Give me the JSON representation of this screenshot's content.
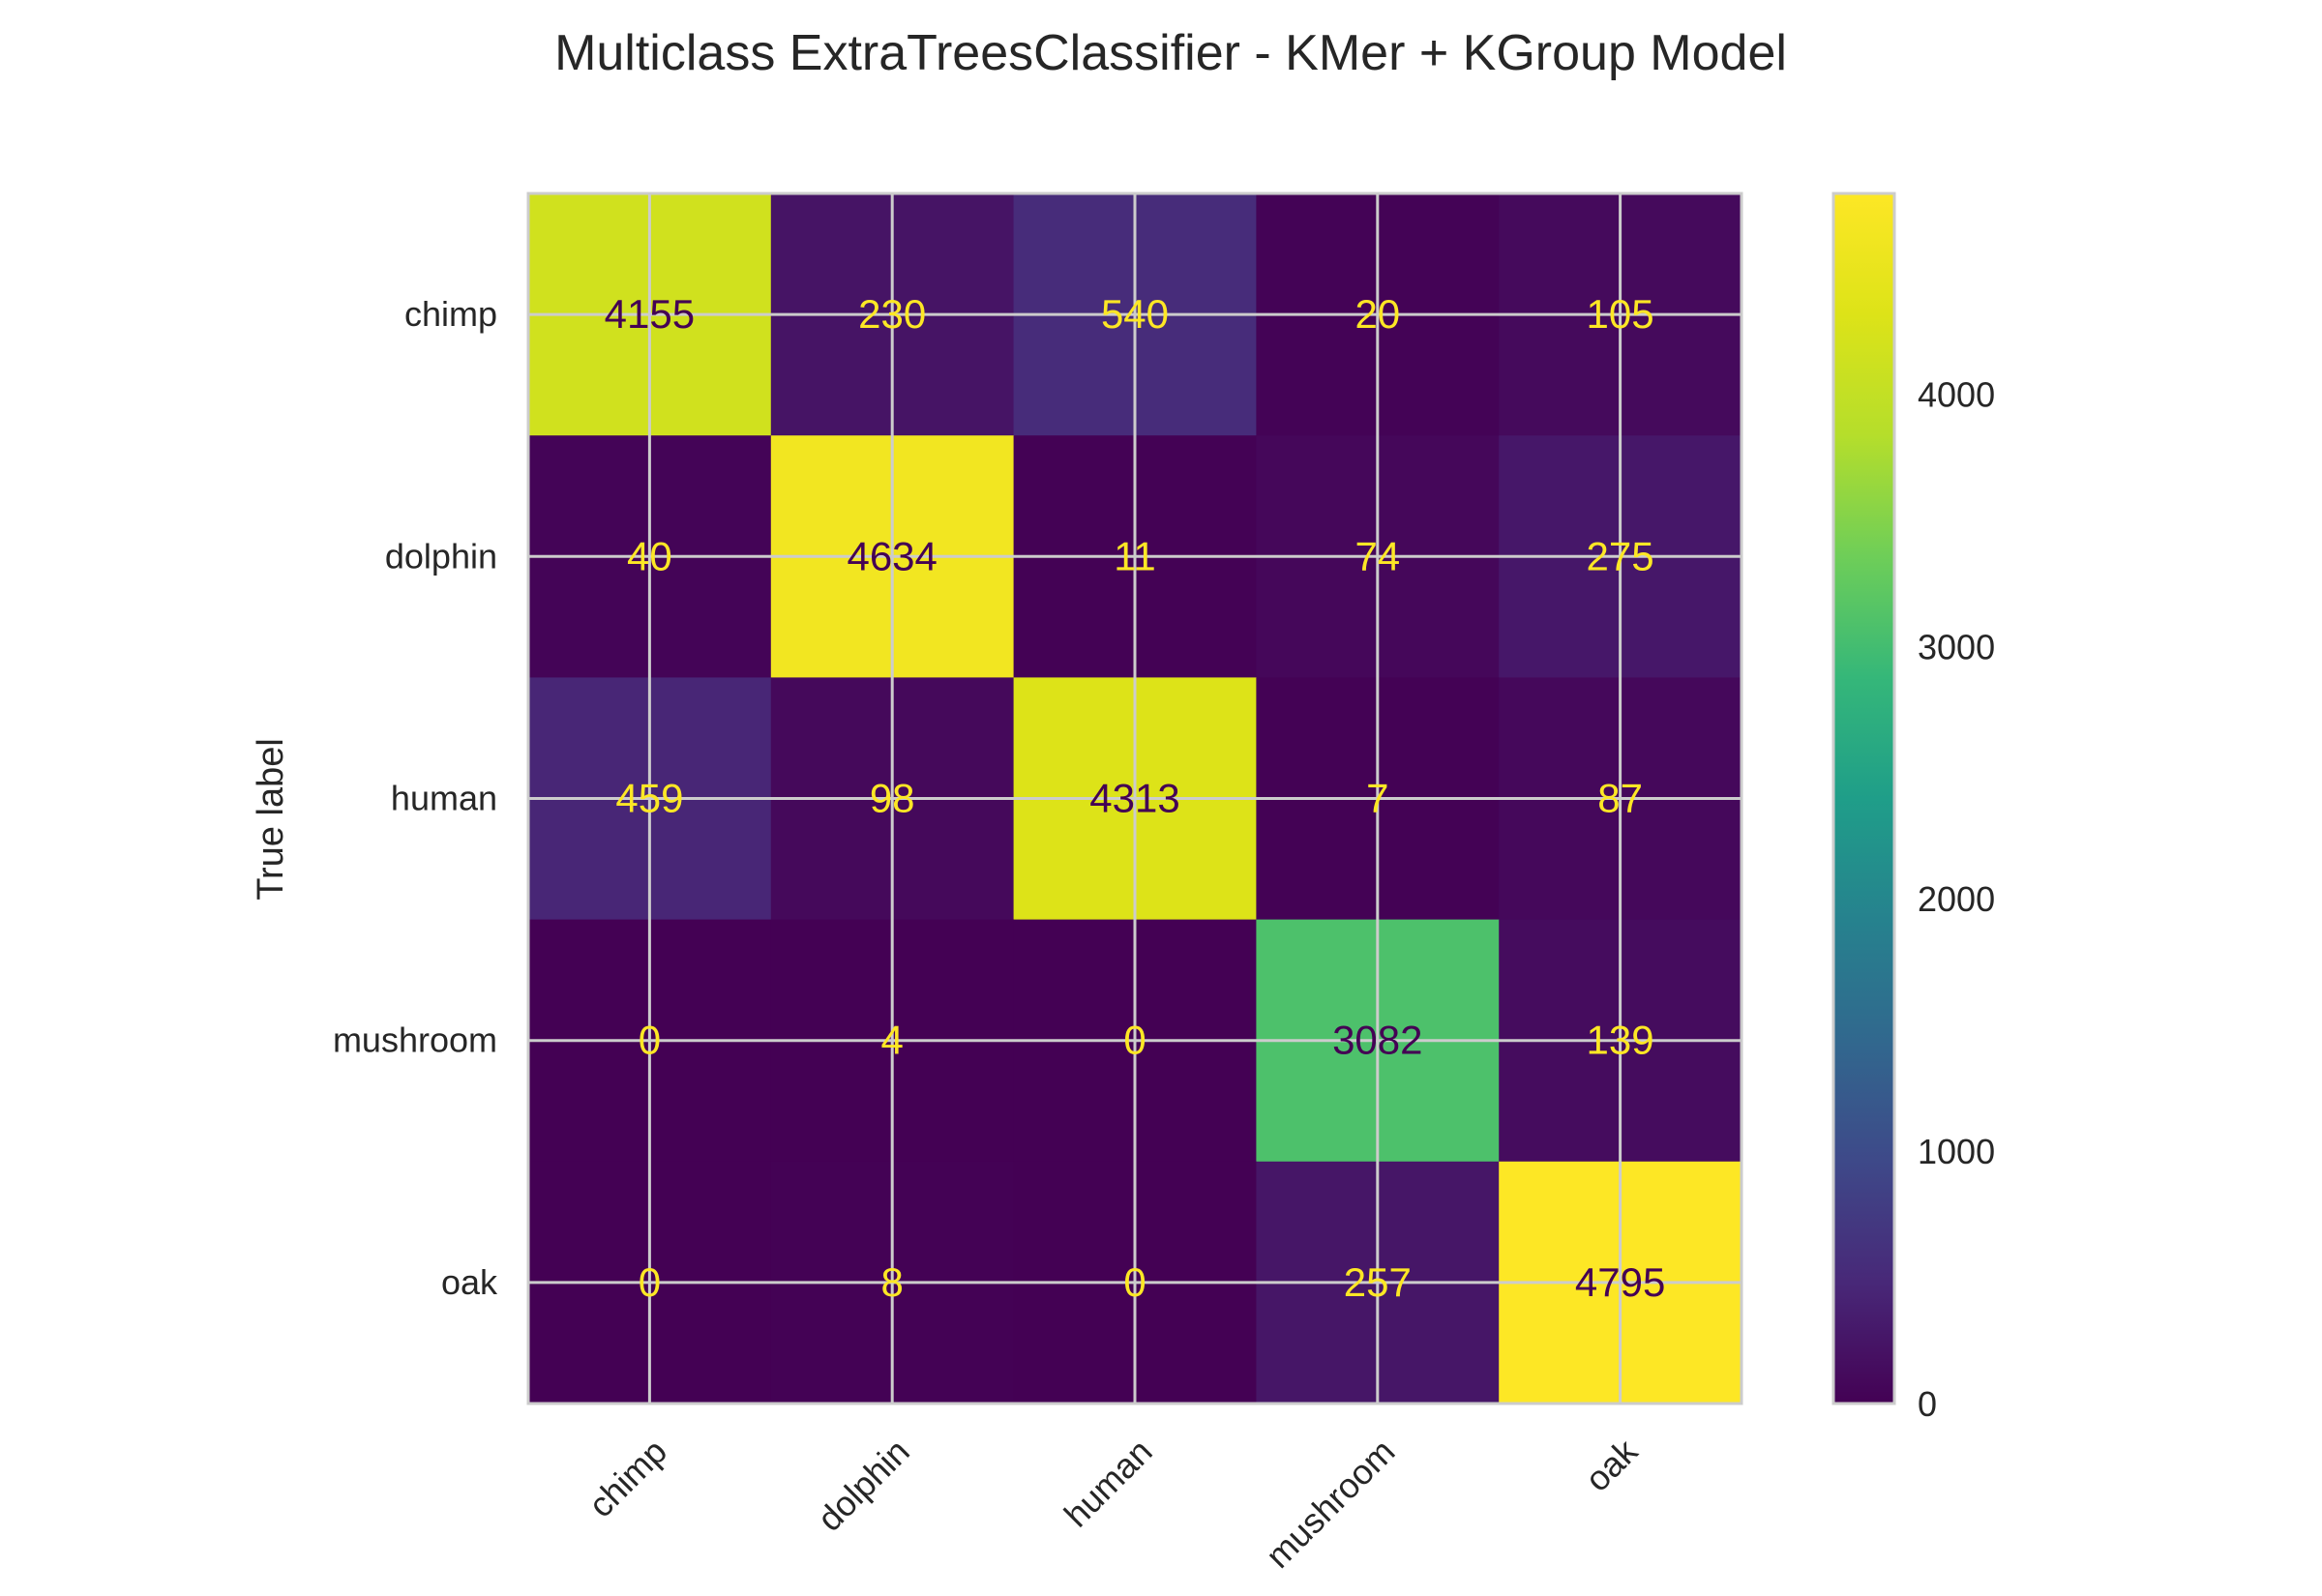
{
  "chart_data": {
    "type": "heatmap",
    "title": "Multiclass ExtraTreesClassifier - KMer + KGroup Model",
    "xlabel": "",
    "ylabel": "True label",
    "x_categories": [
      "chimp",
      "dolphin",
      "human",
      "mushroom",
      "oak"
    ],
    "y_categories": [
      "chimp",
      "dolphin",
      "human",
      "mushroom",
      "oak"
    ],
    "matrix": [
      [
        4155,
        230,
        540,
        20,
        105
      ],
      [
        40,
        4634,
        11,
        74,
        275
      ],
      [
        459,
        98,
        4313,
        7,
        87
      ],
      [
        0,
        4,
        0,
        3082,
        139
      ],
      [
        0,
        8,
        0,
        257,
        4795
      ]
    ],
    "colormap": "viridis",
    "colorbar": {
      "min": 0,
      "max": 4795,
      "ticks": [
        0,
        1000,
        2000,
        3000,
        4000
      ],
      "tick_labels": [
        "0",
        "1000",
        "2000",
        "3000",
        "4000"
      ]
    },
    "grid": true,
    "text_colors": {
      "on_dark": "#fde725",
      "on_light": "#440154"
    }
  }
}
